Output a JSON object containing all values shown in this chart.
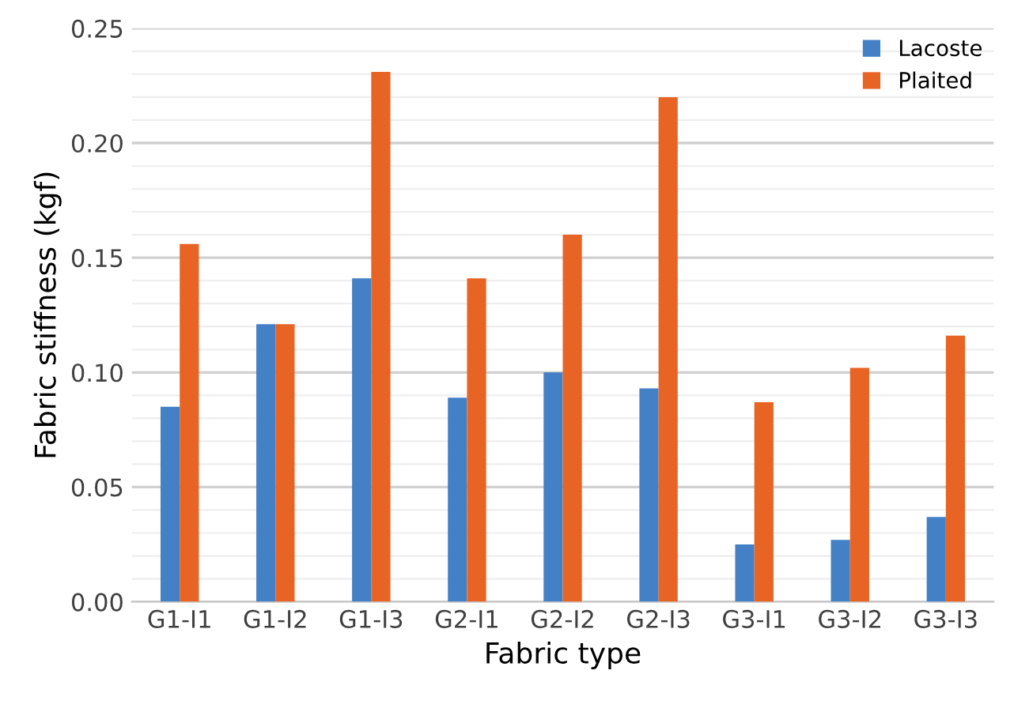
{
  "chart_data": {
    "type": "bar",
    "xlabel": "Fabric type",
    "ylabel": "Fabric stiffness (kgf)",
    "categories": [
      "G1-I1",
      "G1-I2",
      "G1-I3",
      "G2-I1",
      "G2-I2",
      "G2-I3",
      "G3-I1",
      "G3-I2",
      "G3-I3"
    ],
    "series": [
      {
        "name": "Lacoste",
        "color": "#4480c6",
        "values": [
          0.085,
          0.121,
          0.141,
          0.089,
          0.1,
          0.093,
          0.025,
          0.027,
          0.037
        ]
      },
      {
        "name": "Plaited",
        "color": "#e86424",
        "values": [
          0.156,
          0.121,
          0.231,
          0.141,
          0.16,
          0.22,
          0.087,
          0.102,
          0.116
        ]
      }
    ],
    "ylim": [
      0,
      0.25
    ],
    "yticks": [
      {
        "value": 0,
        "label": "0.00"
      },
      {
        "value": 0.05,
        "label": "0.05"
      },
      {
        "value": 0.1,
        "label": "0.10"
      },
      {
        "value": 0.15,
        "label": "0.15"
      },
      {
        "value": 0.2,
        "label": "0.20"
      },
      {
        "value": 0.25,
        "label": "0.25"
      }
    ],
    "grid": "y",
    "legend": "top right"
  }
}
